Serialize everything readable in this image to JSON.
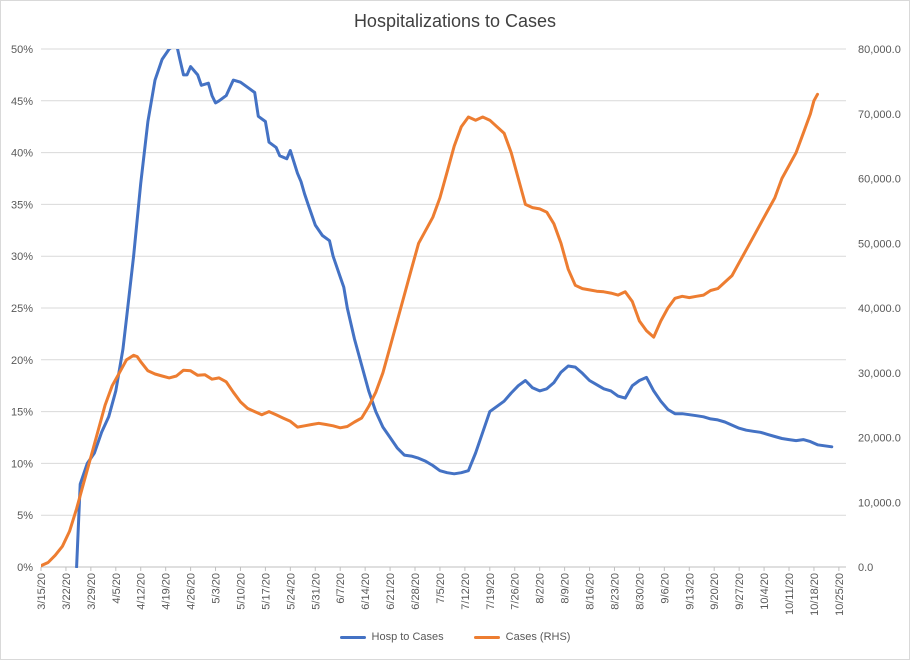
{
  "chart_data": {
    "type": "line",
    "title": "Hospitalizations to Cases",
    "xlabel": "",
    "ylabel": "",
    "x_tick_labels": [
      "3/15/20",
      "3/22/20",
      "3/29/20",
      "4/5/20",
      "4/12/20",
      "4/19/20",
      "4/26/20",
      "5/3/20",
      "5/10/20",
      "5/17/20",
      "5/24/20",
      "5/31/20",
      "6/7/20",
      "6/14/20",
      "6/21/20",
      "6/28/20",
      "7/5/20",
      "7/12/20",
      "7/19/20",
      "7/26/20",
      "8/2/20",
      "8/9/20",
      "8/16/20",
      "8/23/20",
      "8/30/20",
      "9/6/20",
      "9/13/20",
      "9/20/20",
      "9/27/20",
      "10/4/20",
      "10/11/20",
      "10/18/20",
      "10/25/20"
    ],
    "x_range_days": [
      0,
      226
    ],
    "y_left": {
      "min": 0,
      "max": 50,
      "ticks": [
        "0%",
        "5%",
        "10%",
        "15%",
        "20%",
        "25%",
        "30%",
        "35%",
        "40%",
        "45%",
        "50%"
      ]
    },
    "y_right": {
      "min": 0,
      "max": 80000,
      "ticks": [
        "0.0",
        "10,000.0",
        "20,000.0",
        "30,000.0",
        "40,000.0",
        "50,000.0",
        "60,000.0",
        "70,000.0",
        "80,000.0"
      ]
    },
    "series": [
      {
        "name": "Hosp to Cases",
        "axis": "left",
        "color": "#4472c4",
        "points_day_value": [
          [
            10,
            0
          ],
          [
            11,
            8
          ],
          [
            13,
            10
          ],
          [
            15,
            11
          ],
          [
            17,
            13
          ],
          [
            19,
            14.5
          ],
          [
            21,
            17
          ],
          [
            23,
            21
          ],
          [
            24,
            24
          ],
          [
            26,
            30
          ],
          [
            28,
            37
          ],
          [
            30,
            43
          ],
          [
            32,
            47
          ],
          [
            34,
            49
          ],
          [
            36,
            50
          ],
          [
            38,
            50.5
          ],
          [
            39,
            49
          ],
          [
            40,
            47.5
          ],
          [
            41,
            47.5
          ],
          [
            42,
            48.3
          ],
          [
            44,
            47.5
          ],
          [
            45,
            46.5
          ],
          [
            47,
            46.7
          ],
          [
            48,
            45.5
          ],
          [
            49,
            44.8
          ],
          [
            50,
            45
          ],
          [
            52,
            45.5
          ],
          [
            54,
            47
          ],
          [
            56,
            46.8
          ],
          [
            58,
            46.3
          ],
          [
            60,
            45.8
          ],
          [
            61,
            43.5
          ],
          [
            63,
            43
          ],
          [
            64,
            41
          ],
          [
            66,
            40.5
          ],
          [
            67,
            39.7
          ],
          [
            69,
            39.4
          ],
          [
            70,
            40.2
          ],
          [
            72,
            38
          ],
          [
            73,
            37.2
          ],
          [
            74,
            36
          ],
          [
            75,
            35
          ],
          [
            77,
            33
          ],
          [
            79,
            32
          ],
          [
            81,
            31.5
          ],
          [
            82,
            30
          ],
          [
            84,
            28
          ],
          [
            85,
            27
          ],
          [
            86,
            25
          ],
          [
            88,
            22
          ],
          [
            90,
            19.5
          ],
          [
            92,
            17
          ],
          [
            94,
            15
          ],
          [
            96,
            13.5
          ],
          [
            98,
            12.5
          ],
          [
            100,
            11.5
          ],
          [
            102,
            10.8
          ],
          [
            104,
            10.7
          ],
          [
            106,
            10.5
          ],
          [
            108,
            10.2
          ],
          [
            110,
            9.8
          ],
          [
            112,
            9.3
          ],
          [
            114,
            9.1
          ],
          [
            116,
            9.0
          ],
          [
            118,
            9.1
          ],
          [
            120,
            9.3
          ],
          [
            122,
            11
          ],
          [
            124,
            13
          ],
          [
            126,
            15
          ],
          [
            128,
            15.5
          ],
          [
            130,
            16
          ],
          [
            132,
            16.8
          ],
          [
            134,
            17.5
          ],
          [
            136,
            18
          ],
          [
            138,
            17.3
          ],
          [
            140,
            17
          ],
          [
            142,
            17.2
          ],
          [
            144,
            17.8
          ],
          [
            146,
            18.8
          ],
          [
            148,
            19.4
          ],
          [
            150,
            19.3
          ],
          [
            152,
            18.7
          ],
          [
            154,
            18
          ],
          [
            156,
            17.6
          ],
          [
            158,
            17.2
          ],
          [
            160,
            17
          ],
          [
            162,
            16.5
          ],
          [
            164,
            16.3
          ],
          [
            166,
            17.5
          ],
          [
            168,
            18
          ],
          [
            170,
            18.3
          ],
          [
            172,
            17
          ],
          [
            174,
            16
          ],
          [
            176,
            15.2
          ],
          [
            178,
            14.8
          ],
          [
            180,
            14.8
          ],
          [
            182,
            14.7
          ],
          [
            184,
            14.6
          ],
          [
            186,
            14.5
          ],
          [
            188,
            14.3
          ],
          [
            190,
            14.2
          ],
          [
            192,
            14.0
          ],
          [
            194,
            13.7
          ],
          [
            196,
            13.4
          ],
          [
            198,
            13.2
          ],
          [
            200,
            13.1
          ],
          [
            202,
            13.0
          ],
          [
            204,
            12.8
          ],
          [
            206,
            12.6
          ],
          [
            208,
            12.4
          ],
          [
            210,
            12.3
          ],
          [
            212,
            12.2
          ],
          [
            214,
            12.3
          ],
          [
            216,
            12.1
          ],
          [
            218,
            11.8
          ],
          [
            220,
            11.7
          ],
          [
            222,
            11.6
          ]
        ]
      },
      {
        "name": "Cases (RHS)",
        "axis": "right",
        "color": "#ed7d31",
        "points_day_value": [
          [
            0,
            200
          ],
          [
            2,
            700
          ],
          [
            4,
            1800
          ],
          [
            6,
            3200
          ],
          [
            8,
            5500
          ],
          [
            10,
            9000
          ],
          [
            12,
            13000
          ],
          [
            14,
            17000
          ],
          [
            16,
            21000
          ],
          [
            18,
            25000
          ],
          [
            20,
            28000
          ],
          [
            22,
            30000
          ],
          [
            24,
            32000
          ],
          [
            26,
            32700
          ],
          [
            27,
            32500
          ],
          [
            28,
            31700
          ],
          [
            30,
            30300
          ],
          [
            32,
            29800
          ],
          [
            34,
            29500
          ],
          [
            36,
            29200
          ],
          [
            38,
            29500
          ],
          [
            40,
            30400
          ],
          [
            42,
            30300
          ],
          [
            44,
            29600
          ],
          [
            46,
            29700
          ],
          [
            48,
            29000
          ],
          [
            50,
            29200
          ],
          [
            52,
            28600
          ],
          [
            54,
            27000
          ],
          [
            56,
            25500
          ],
          [
            58,
            24500
          ],
          [
            60,
            24000
          ],
          [
            62,
            23500
          ],
          [
            64,
            24000
          ],
          [
            66,
            23500
          ],
          [
            68,
            23000
          ],
          [
            70,
            22500
          ],
          [
            72,
            21600
          ],
          [
            74,
            21800
          ],
          [
            76,
            22000
          ],
          [
            78,
            22200
          ],
          [
            80,
            22000
          ],
          [
            82,
            21800
          ],
          [
            84,
            21500
          ],
          [
            86,
            21700
          ],
          [
            88,
            22400
          ],
          [
            90,
            23000
          ],
          [
            92,
            24800
          ],
          [
            94,
            27000
          ],
          [
            96,
            30000
          ],
          [
            98,
            34000
          ],
          [
            100,
            38000
          ],
          [
            102,
            42000
          ],
          [
            104,
            46000
          ],
          [
            106,
            50000
          ],
          [
            108,
            52000
          ],
          [
            110,
            54000
          ],
          [
            112,
            57000
          ],
          [
            114,
            61000
          ],
          [
            116,
            65000
          ],
          [
            118,
            68000
          ],
          [
            120,
            69500
          ],
          [
            122,
            69000
          ],
          [
            124,
            69500
          ],
          [
            126,
            69000
          ],
          [
            128,
            68000
          ],
          [
            130,
            67000
          ],
          [
            132,
            64000
          ],
          [
            134,
            60000
          ],
          [
            136,
            56000
          ],
          [
            138,
            55500
          ],
          [
            140,
            55300
          ],
          [
            142,
            54800
          ],
          [
            144,
            53000
          ],
          [
            146,
            50000
          ],
          [
            148,
            46000
          ],
          [
            150,
            43500
          ],
          [
            152,
            43000
          ],
          [
            154,
            42800
          ],
          [
            156,
            42600
          ],
          [
            158,
            42500
          ],
          [
            160,
            42300
          ],
          [
            162,
            42000
          ],
          [
            164,
            42500
          ],
          [
            166,
            41000
          ],
          [
            168,
            38000
          ],
          [
            170,
            36500
          ],
          [
            172,
            35500
          ],
          [
            174,
            38000
          ],
          [
            176,
            40000
          ],
          [
            178,
            41500
          ],
          [
            180,
            41800
          ],
          [
            182,
            41600
          ],
          [
            184,
            41800
          ],
          [
            186,
            42000
          ],
          [
            188,
            42700
          ],
          [
            190,
            43000
          ],
          [
            192,
            44000
          ],
          [
            194,
            45000
          ],
          [
            196,
            47000
          ],
          [
            198,
            49000
          ],
          [
            200,
            51000
          ],
          [
            202,
            53000
          ],
          [
            204,
            55000
          ],
          [
            206,
            57000
          ],
          [
            208,
            60000
          ],
          [
            210,
            62000
          ],
          [
            212,
            64000
          ],
          [
            214,
            67000
          ],
          [
            216,
            70000
          ],
          [
            217,
            72000
          ],
          [
            218,
            73000
          ]
        ]
      }
    ]
  },
  "legend": {
    "items": [
      {
        "label": "Hosp to Cases",
        "color": "#4472c4"
      },
      {
        "label": "Cases (RHS)",
        "color": "#ed7d31"
      }
    ]
  }
}
